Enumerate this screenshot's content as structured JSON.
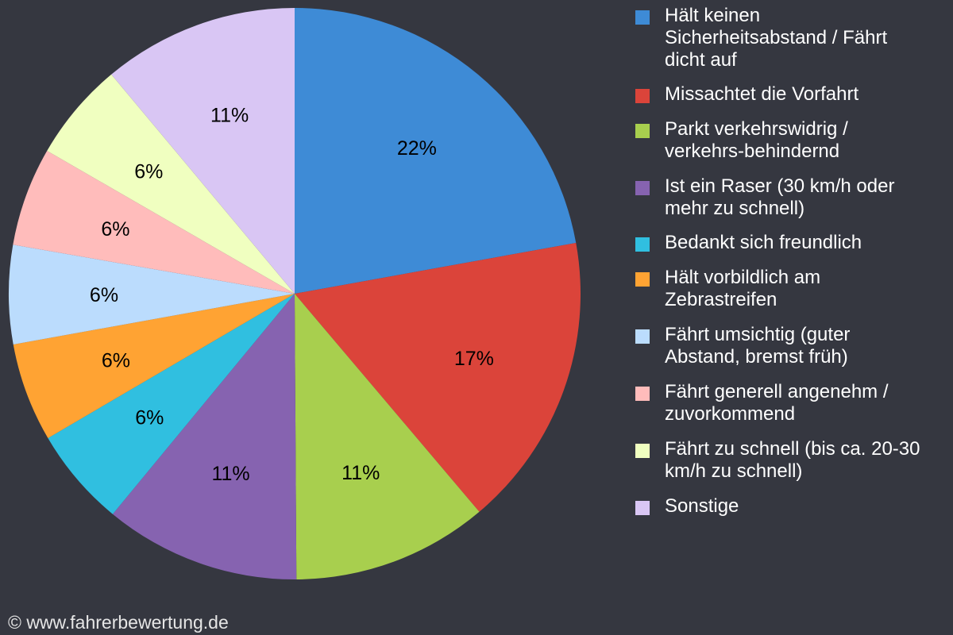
{
  "chart_data": {
    "type": "pie",
    "start": "top",
    "direction": "clockwise",
    "slices": [
      {
        "name": "Hält keinen Sicherheitsabstand / Fährt dicht auf",
        "value": 22.2,
        "label": "22%",
        "color": "#3e8bd6"
      },
      {
        "name": "Missachtet die Vorfahrt",
        "value": 16.7,
        "label": "17%",
        "color": "#db443a"
      },
      {
        "name": "Parkt verkehrswidrig / verkehrs-behindernd",
        "value": 11.1,
        "label": "11%",
        "color": "#a8cf4e"
      },
      {
        "name": "Ist ein Raser (30 km/h oder mehr zu schnell)",
        "value": 11.1,
        "label": "11%",
        "color": "#8663b0"
      },
      {
        "name": "Bedankt sich freundlich",
        "value": 5.6,
        "label": "6%",
        "color": "#30bfe0"
      },
      {
        "name": "Hält vorbildlich am Zebrastreifen",
        "value": 5.6,
        "label": "6%",
        "color": "#ffa333"
      },
      {
        "name": "Fährt umsichtig (guter Abstand, bremst früh)",
        "value": 5.6,
        "label": "6%",
        "color": "#bbdcfd"
      },
      {
        "name": "Fährt generell angenehm / zuvorkommend",
        "value": 5.6,
        "label": "6%",
        "color": "#ffbcbb"
      },
      {
        "name": "Fährt zu schnell (bis ca. 20-30 km/h zu schnell)",
        "value": 5.6,
        "label": "6%",
        "color": "#f0ffc0"
      },
      {
        "name": "Sonstige",
        "value": 11.1,
        "label": "11%",
        "color": "#d9c6f4"
      }
    ],
    "legend_placement": "right"
  },
  "legend": [
    "Hält keinen\nSicherheitsabstand / Fährt\ndicht auf",
    "Missachtet die Vorfahrt",
    "Parkt verkehrswidrig /\nverkehrs-behindernd",
    "Ist ein Raser (30 km/h oder\nmehr zu schnell)",
    "Bedankt sich freundlich",
    "Hält vorbildlich am\nZebrastreifen",
    "Fährt umsichtig (guter\nAbstand, bremst früh)",
    "Fährt generell angenehm /\nzuvorkommend",
    "Fährt zu schnell (bis ca. 20-30\nkm/h zu schnell)",
    "Sonstige"
  ],
  "background": "#353740",
  "footer": "© www.fahrerbewertung.de"
}
